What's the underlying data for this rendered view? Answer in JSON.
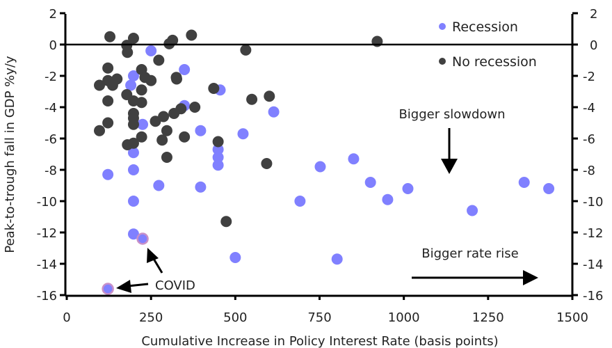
{
  "chart_data": {
    "type": "scatter",
    "title": "",
    "xlabel": "Cumulative Increase in Policy Interest Rate (basis points)",
    "ylabel": "Peak-to-trough fall in GDP %y/y",
    "xlim": [
      0,
      1500
    ],
    "ylim": [
      -16,
      2
    ],
    "x_ticks": [
      "0",
      "250",
      "500",
      "750",
      "1000",
      "1250",
      "1500"
    ],
    "x_tick_values": [
      0,
      250,
      500,
      750,
      1000,
      1250,
      1500
    ],
    "y_ticks": [
      "2",
      "0",
      "-2",
      "-4",
      "-6",
      "-8",
      "-10",
      "-12",
      "-14",
      "-16"
    ],
    "y_tick_values": [
      2,
      0,
      -2,
      -4,
      -6,
      -8,
      -10,
      -12,
      -14,
      -16
    ],
    "grid": false,
    "legend_position": "top-right",
    "series": [
      {
        "name": "Recession",
        "color": "#8080ff",
        "points": [
          [
            250,
            -0.4
          ],
          [
            198,
            -2.0
          ],
          [
            190,
            -2.6
          ],
          [
            349,
            -1.6
          ],
          [
            455,
            -2.9
          ],
          [
            349,
            -3.9
          ],
          [
            614,
            -4.3
          ],
          [
            225,
            -5.1
          ],
          [
            397,
            -5.5
          ],
          [
            523,
            -5.7
          ],
          [
            198,
            -6.9
          ],
          [
            449,
            -6.7
          ],
          [
            449,
            -7.2
          ],
          [
            449,
            -7.7
          ],
          [
            752,
            -7.8
          ],
          [
            851,
            -7.3
          ],
          [
            122,
            -8.3
          ],
          [
            198,
            -8.0
          ],
          [
            273,
            -9.0
          ],
          [
            397,
            -9.1
          ],
          [
            901,
            -8.8
          ],
          [
            1012,
            -9.2
          ],
          [
            952,
            -9.9
          ],
          [
            692,
            -10.0
          ],
          [
            198,
            -10.0
          ],
          [
            1357,
            -8.8
          ],
          [
            1430,
            -9.2
          ],
          [
            1203,
            -10.6
          ],
          [
            198,
            -12.1
          ],
          [
            500,
            -13.6
          ],
          [
            802,
            -13.7
          ]
        ]
      },
      {
        "name": "No recession",
        "color": "#404040",
        "points": [
          [
            128,
            0.5
          ],
          [
            198,
            0.4
          ],
          [
            178,
            -0.05
          ],
          [
            180,
            -0.5
          ],
          [
            273,
            -1.0
          ],
          [
            304,
            0.05
          ],
          [
            314,
            0.27
          ],
          [
            370,
            0.6
          ],
          [
            531,
            -0.35
          ],
          [
            921,
            0.2
          ],
          [
            122,
            -1.5
          ],
          [
            97,
            -2.6
          ],
          [
            122,
            -2.3
          ],
          [
            136,
            -2.6
          ],
          [
            149,
            -2.2
          ],
          [
            122,
            -3.6
          ],
          [
            122,
            -5.0
          ],
          [
            97,
            -5.5
          ],
          [
            222,
            -1.6
          ],
          [
            232,
            -2.1
          ],
          [
            250,
            -2.3
          ],
          [
            222,
            -2.9
          ],
          [
            178,
            -3.2
          ],
          [
            198,
            -3.6
          ],
          [
            222,
            -3.7
          ],
          [
            198,
            -4.4
          ],
          [
            198,
            -4.7
          ],
          [
            198,
            -5.1
          ],
          [
            222,
            -5.9
          ],
          [
            198,
            -6.3
          ],
          [
            180,
            -6.4
          ],
          [
            325,
            -2.1
          ],
          [
            326,
            -2.2
          ],
          [
            263,
            -4.9
          ],
          [
            287,
            -4.6
          ],
          [
            318,
            -4.4
          ],
          [
            339,
            -4.1
          ],
          [
            380,
            -4.0
          ],
          [
            297,
            -5.5
          ],
          [
            283,
            -6.1
          ],
          [
            349,
            -5.9
          ],
          [
            297,
            -7.2
          ],
          [
            436,
            -2.8
          ],
          [
            549,
            -3.5
          ],
          [
            601,
            -3.3
          ],
          [
            449,
            -6.2
          ],
          [
            593,
            -7.6
          ],
          [
            473,
            -11.3
          ]
        ]
      }
    ],
    "highlighted": {
      "label": "COVID",
      "ring_color": "#c890c8",
      "points": [
        [
          225,
          -12.4
        ],
        [
          122,
          -15.6
        ]
      ]
    },
    "annotations": [
      {
        "text": "Bigger slowdown",
        "arrow": "down"
      },
      {
        "text": "Bigger rate rise",
        "arrow": "right"
      }
    ]
  }
}
